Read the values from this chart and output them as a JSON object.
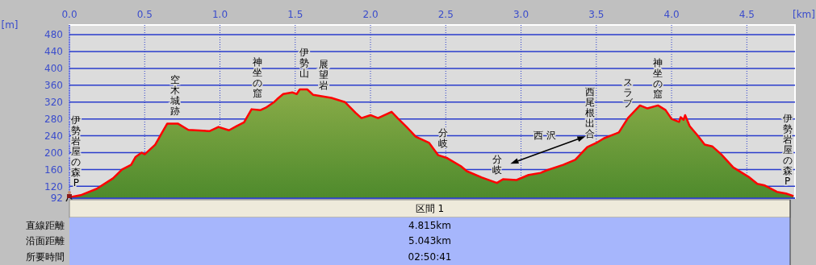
{
  "chart_data": {
    "type": "area",
    "xlabel": "[km]",
    "ylabel": "[m]",
    "x": [
      0,
      0.075,
      0.18,
      0.29,
      0.35,
      0.41,
      0.44,
      0.48,
      0.5,
      0.57,
      0.61,
      0.65,
      0.72,
      0.79,
      0.93,
      0.99,
      1.06,
      1.11,
      1.16,
      1.21,
      1.27,
      1.31,
      1.36,
      1.38,
      1.42,
      1.48,
      1.51,
      1.53,
      1.58,
      1.62,
      1.74,
      1.83,
      1.9,
      1.94,
      2.0,
      2.05,
      2.14,
      2.18,
      2.24,
      2.3,
      2.39,
      2.45,
      2.51,
      2.6,
      2.64,
      2.74,
      2.84,
      2.88,
      2.97,
      3.05,
      3.13,
      3.17,
      3.28,
      3.36,
      3.44,
      3.5,
      3.55,
      3.65,
      3.71,
      3.79,
      3.84,
      3.91,
      3.96,
      4.0,
      4.05,
      4.06,
      4.08,
      4.09,
      4.12,
      4.17,
      4.22,
      4.27,
      4.33,
      4.41,
      4.51,
      4.57,
      4.62,
      4.7,
      4.76,
      4.81
    ],
    "series": [
      {
        "color": "#ff0000",
        "values": [
          94,
          99,
          114,
          139,
          160,
          171,
          190,
          200,
          196,
          219,
          244,
          269,
          269,
          254,
          251,
          261,
          253,
          263,
          272,
          303,
          301,
          308,
          320,
          327,
          339,
          343,
          339,
          350,
          350,
          337,
          330,
          320,
          295,
          282,
          289,
          282,
          297,
          282,
          261,
          238,
          223,
          194,
          187,
          168,
          156,
          141,
          128,
          137,
          135,
          147,
          152,
          158,
          171,
          183,
          213,
          223,
          234,
          248,
          282,
          312,
          305,
          312,
          301,
          280,
          273,
          284,
          278,
          289,
          263,
          242,
          219,
          215,
          196,
          165,
          143,
          126,
          122,
          107,
          103,
          97
        ]
      }
    ],
    "xlim": [
      0,
      4.82
    ],
    "ylim": [
      92,
      503
    ],
    "xticks": [
      {
        "value": 0,
        "label": "0.0"
      },
      0.5,
      {
        "value": 1,
        "label": "1.0"
      },
      1.5,
      {
        "value": 2,
        "label": "2.0"
      },
      2.5,
      {
        "value": 3,
        "label": "3.0"
      },
      3.5,
      {
        "value": 4,
        "label": "4.0"
      },
      4.5
    ],
    "yticks": [
      92,
      120,
      160,
      200,
      240,
      280,
      320,
      360,
      400,
      440,
      480
    ],
    "grid": true,
    "annotations": [
      "伊勢岩屋の森P",
      "空木城跡",
      "神坐の窟",
      "伊勢山",
      "展望岩",
      "分岐",
      "分岐",
      "西 沢",
      "西尾根出合",
      "スラブ",
      "神坐の窟",
      "伊勢岩屋の森P",
      "区間 1",
      "直線距離",
      "4.815km",
      "沿面距離",
      "5.043km",
      "所要時間",
      "02:50:41"
    ]
  }
}
